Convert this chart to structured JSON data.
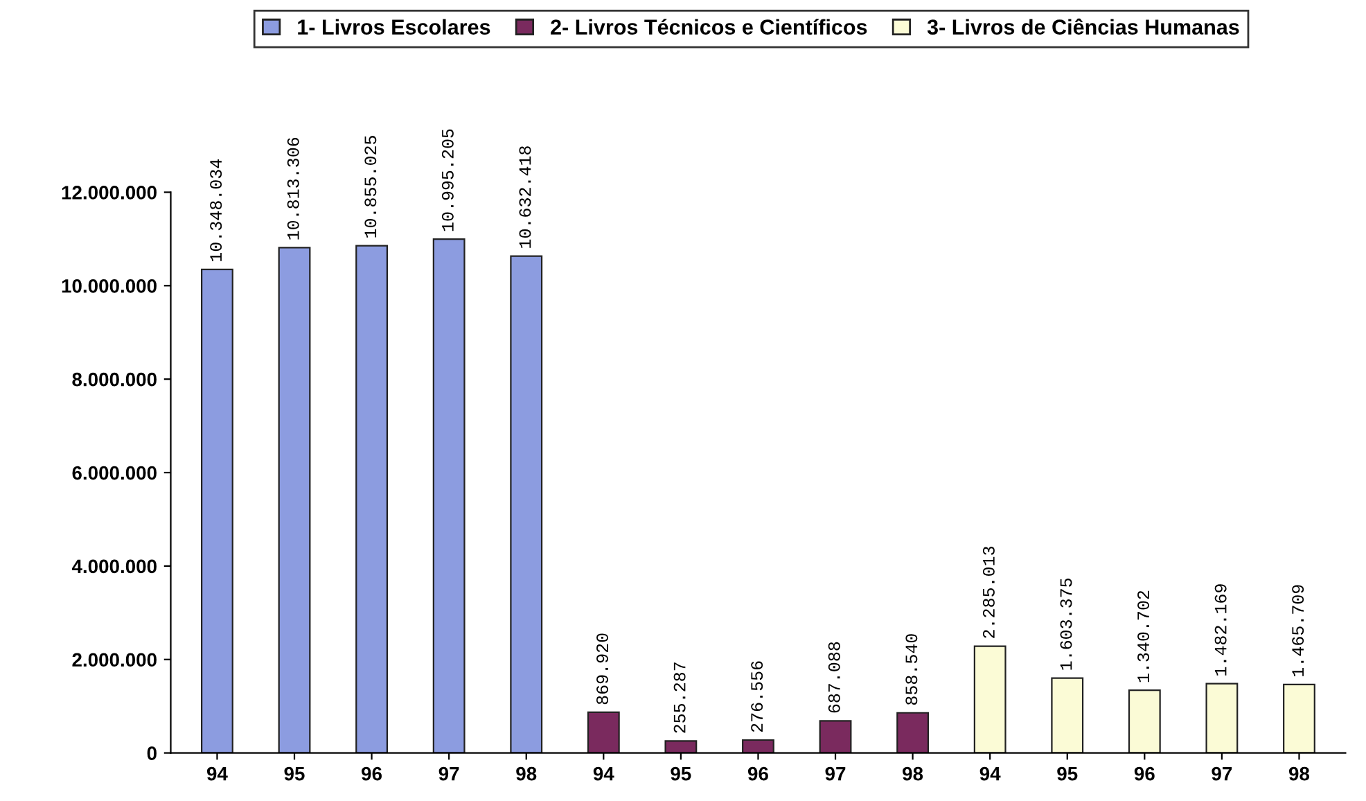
{
  "chart_data": {
    "type": "bar",
    "categories": [
      "94",
      "95",
      "96",
      "97",
      "98",
      "94",
      "95",
      "96",
      "97",
      "98",
      "94",
      "95",
      "96",
      "97",
      "98"
    ],
    "series": [
      {
        "name": "1- Livros Escolares",
        "color": "#8c9ce0",
        "values": [
          10348034,
          10813306,
          10855025,
          10995205,
          10632418,
          null,
          null,
          null,
          null,
          null,
          null,
          null,
          null,
          null,
          null
        ],
        "value_labels": [
          "10.348.034",
          "10.813.306",
          "10.855.025",
          "10.995.205",
          "10.632.418",
          null,
          null,
          null,
          null,
          null,
          null,
          null,
          null,
          null,
          null
        ]
      },
      {
        "name": "2- Livros Técnicos e Científicos",
        "color": "#7a2a5e",
        "values": [
          null,
          null,
          null,
          null,
          null,
          869920,
          255287,
          276556,
          687088,
          858540,
          null,
          null,
          null,
          null,
          null
        ],
        "value_labels": [
          null,
          null,
          null,
          null,
          null,
          "869.920",
          "255.287",
          "276.556",
          "687.088",
          "858.540",
          null,
          null,
          null,
          null,
          null
        ]
      },
      {
        "name": "3- Livros de Ciências Humanas",
        "color": "#fbfbd6",
        "values": [
          null,
          null,
          null,
          null,
          null,
          null,
          null,
          null,
          null,
          null,
          2285013,
          1603375,
          1340702,
          1482169,
          1465709
        ],
        "value_labels": [
          null,
          null,
          null,
          null,
          null,
          null,
          null,
          null,
          null,
          null,
          "2.285.013",
          "1.603.375",
          "1.340.702",
          "1.482.169",
          "1.465.709"
        ]
      }
    ],
    "stacked": true,
    "ylim": [
      0,
      12000000
    ],
    "yticks": [
      0,
      {
        "value": 2000000,
        "label": "2.000.000"
      },
      {
        "value": 4000000,
        "label": "4.000.000"
      },
      {
        "value": 6000000,
        "label": "6.000.000"
      },
      {
        "value": 8000000,
        "label": "8.000.000"
      },
      {
        "value": 10000000,
        "label": "10.000.000"
      },
      {
        "value": 12000000,
        "label": "12.000.000"
      }
    ],
    "grid": false,
    "legend": "top"
  }
}
